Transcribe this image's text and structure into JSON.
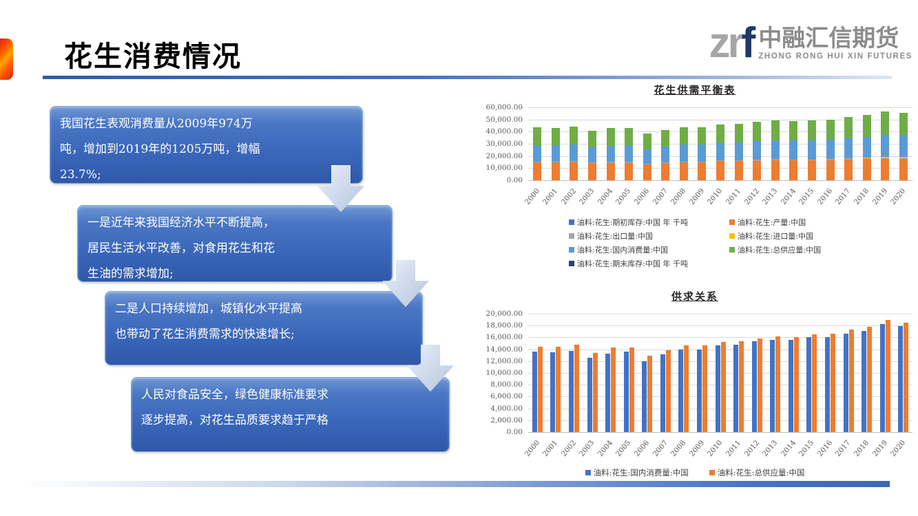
{
  "slide": {
    "title": "花生消费情况",
    "logo": {
      "zr": "zr",
      "f": "f",
      "cn": "中融汇信期货",
      "en": "ZHONG RONG HUI XIN FUTURES"
    },
    "accent_colors": {
      "header_line_blue": "#4472c4",
      "red_accent": "#ff5a00",
      "box_blue": "#3a67ba",
      "arrow_gray_blue": "#ccd7ea"
    },
    "flow": {
      "boxes": [
        {
          "text": "我国花生表观消费量从2009年974万\n吨，增加到2019年的1205万吨，增幅\n23.7%;"
        },
        {
          "text": "一是近年来我国经济水平不断提高，\n居民生活水平改善，对食用花生和花\n生油的需求增加;"
        },
        {
          "text": "二是人口持续增加，城镇化水平提高\n也带动了花生消费需求的快速增长;"
        },
        {
          "text": "人民对食品安全，绿色健康标准要求\n逐步提高，对花生品质要求趋于严格"
        }
      ]
    }
  },
  "chart_data": [
    {
      "type": "bar",
      "stacked": true,
      "title": "花生供需平衡表",
      "categories": [
        "2000",
        "2001",
        "2002",
        "2003",
        "2004",
        "2005",
        "2006",
        "2007",
        "2008",
        "2009",
        "2010",
        "2011",
        "2012",
        "2013",
        "2014",
        "2015",
        "2016",
        "2017",
        "2018",
        "2019",
        "2020"
      ],
      "series": [
        {
          "name": "油料:花生:期初库存:中国 年 千吨",
          "color": "#4472C4",
          "values": [
            0,
            0,
            0,
            0,
            0,
            0,
            0,
            0,
            0,
            0,
            0,
            0,
            0,
            0,
            0,
            0,
            0,
            0,
            0,
            0,
            0
          ]
        },
        {
          "name": "油料:花生:产量:中国",
          "color": "#ED7D31",
          "values": [
            14800,
            14700,
            15000,
            13900,
            14400,
            14400,
            13100,
            14000,
            14800,
            14700,
            15600,
            15600,
            16100,
            16700,
            16500,
            16400,
            16700,
            17200,
            17600,
            17500,
            17300
          ]
        },
        {
          "name": "油料:花生:出口量:中国",
          "color": "#A5A5A5",
          "values": [
            700,
            700,
            800,
            700,
            800,
            700,
            600,
            700,
            500,
            500,
            600,
            600,
            700,
            700,
            600,
            600,
            700,
            700,
            700,
            700,
            600
          ]
        },
        {
          "name": "油料:花生:进口量:中国",
          "color": "#FFC000",
          "values": [
            0,
            0,
            0,
            0,
            0,
            0,
            0,
            0,
            0,
            0,
            0,
            0,
            0,
            0,
            0,
            0,
            0,
            200,
            500,
            1000,
            1200
          ]
        },
        {
          "name": "油料:花生:国内消费量:中国",
          "color": "#5B9BD5",
          "values": [
            13600,
            13500,
            13700,
            12600,
            13300,
            13550,
            12000,
            13100,
            13950,
            14000,
            14600,
            14750,
            15300,
            15550,
            15600,
            16000,
            16000,
            16650,
            17150,
            18300,
            17900
          ]
        },
        {
          "name": "油料:花生:总供应量:中国",
          "color": "#70AD47",
          "values": [
            14400,
            14400,
            14800,
            13400,
            14300,
            14300,
            12900,
            13800,
            14600,
            14600,
            15200,
            15350,
            15850,
            16150,
            16050,
            16500,
            16650,
            17350,
            17800,
            18900,
            18500
          ]
        },
        {
          "name": "油料:花生:期末库存:中国 年 千吨",
          "color": "#264478",
          "values": [
            0,
            0,
            0,
            0,
            0,
            0,
            0,
            0,
            0,
            0,
            0,
            0,
            0,
            0,
            0,
            0,
            0,
            0,
            0,
            0,
            0
          ]
        }
      ],
      "ylim": [
        0,
        60000
      ],
      "ytick_step": 10000,
      "grid": true,
      "legend_position": "bottom"
    },
    {
      "type": "bar",
      "stacked": false,
      "title": "供求关系",
      "categories": [
        "2000",
        "2001",
        "2002",
        "2003",
        "2004",
        "2005",
        "2006",
        "2007",
        "2008",
        "2009",
        "2010",
        "2011",
        "2012",
        "2013",
        "2014",
        "2015",
        "2016",
        "2017",
        "2018",
        "2019",
        "2020"
      ],
      "series": [
        {
          "name": "油料:花生:国内消费量:中国",
          "color": "#4472C4",
          "values": [
            13600,
            13500,
            13700,
            12600,
            13300,
            13550,
            12000,
            13100,
            13950,
            14000,
            14600,
            14750,
            15300,
            15550,
            15600,
            16000,
            16000,
            16650,
            17150,
            18300,
            17900
          ]
        },
        {
          "name": "油料:花生:总供应量:中国",
          "color": "#ED7D31",
          "values": [
            14400,
            14400,
            14800,
            13400,
            14300,
            14300,
            12900,
            13800,
            14600,
            14600,
            15200,
            15350,
            15850,
            16150,
            16050,
            16500,
            16650,
            17350,
            17800,
            18900,
            18500
          ]
        }
      ],
      "ylim": [
        0,
        20000
      ],
      "ytick_step": 2000,
      "grid": true,
      "legend_position": "bottom"
    }
  ]
}
